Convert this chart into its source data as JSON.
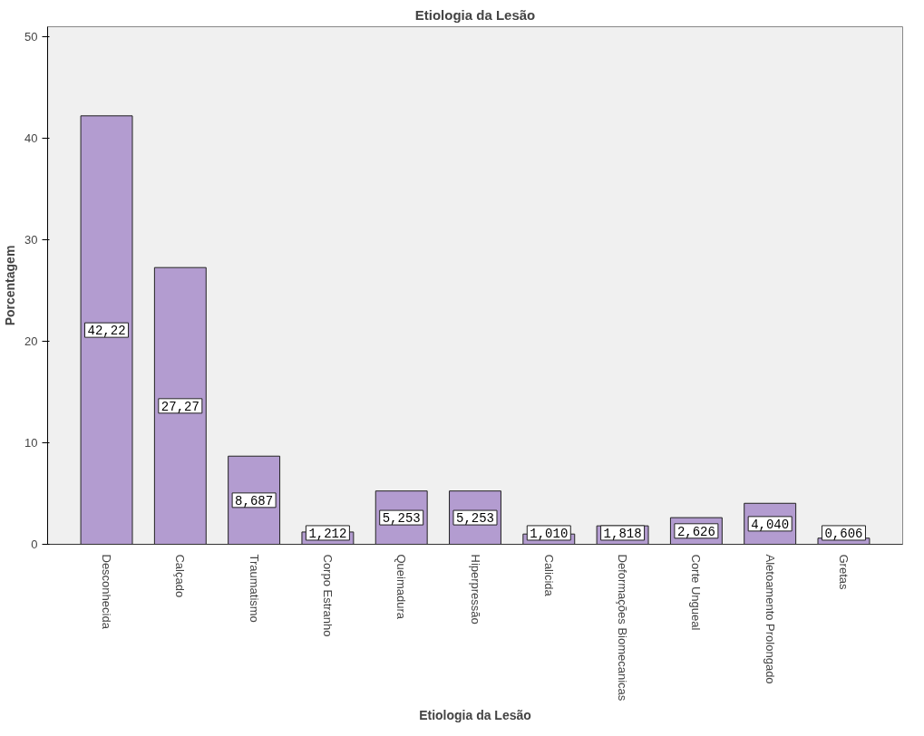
{
  "chart_data": {
    "type": "bar",
    "title": "Etiologia da Lesão",
    "xlabel": "Etiologia da Lesão",
    "ylabel": "Porcentagem",
    "categories": [
      "Desconhecida",
      "Calçado",
      "Traumatismo",
      "Corpo Estranho",
      "Queimadura",
      "Hiperpressão",
      "Calicida",
      "Deformações Biomecanicas",
      "Corte Ungueal",
      "Aletoamento Prolongado",
      "Gretas"
    ],
    "values": [
      42.22,
      27.27,
      8.687,
      1.212,
      5.253,
      5.253,
      1.01,
      1.818,
      2.626,
      4.04,
      0.606
    ],
    "value_labels": [
      "42,22",
      "27,27",
      "8,687",
      "1,212",
      "5,253",
      "5,253",
      "1,010",
      "1,818",
      "2,626",
      "4,040",
      "0,606"
    ],
    "color": "#b39cd0",
    "ylim": [
      0,
      51
    ],
    "yticks": [
      0,
      10,
      20,
      30,
      40,
      50
    ],
    "grid": false
  }
}
